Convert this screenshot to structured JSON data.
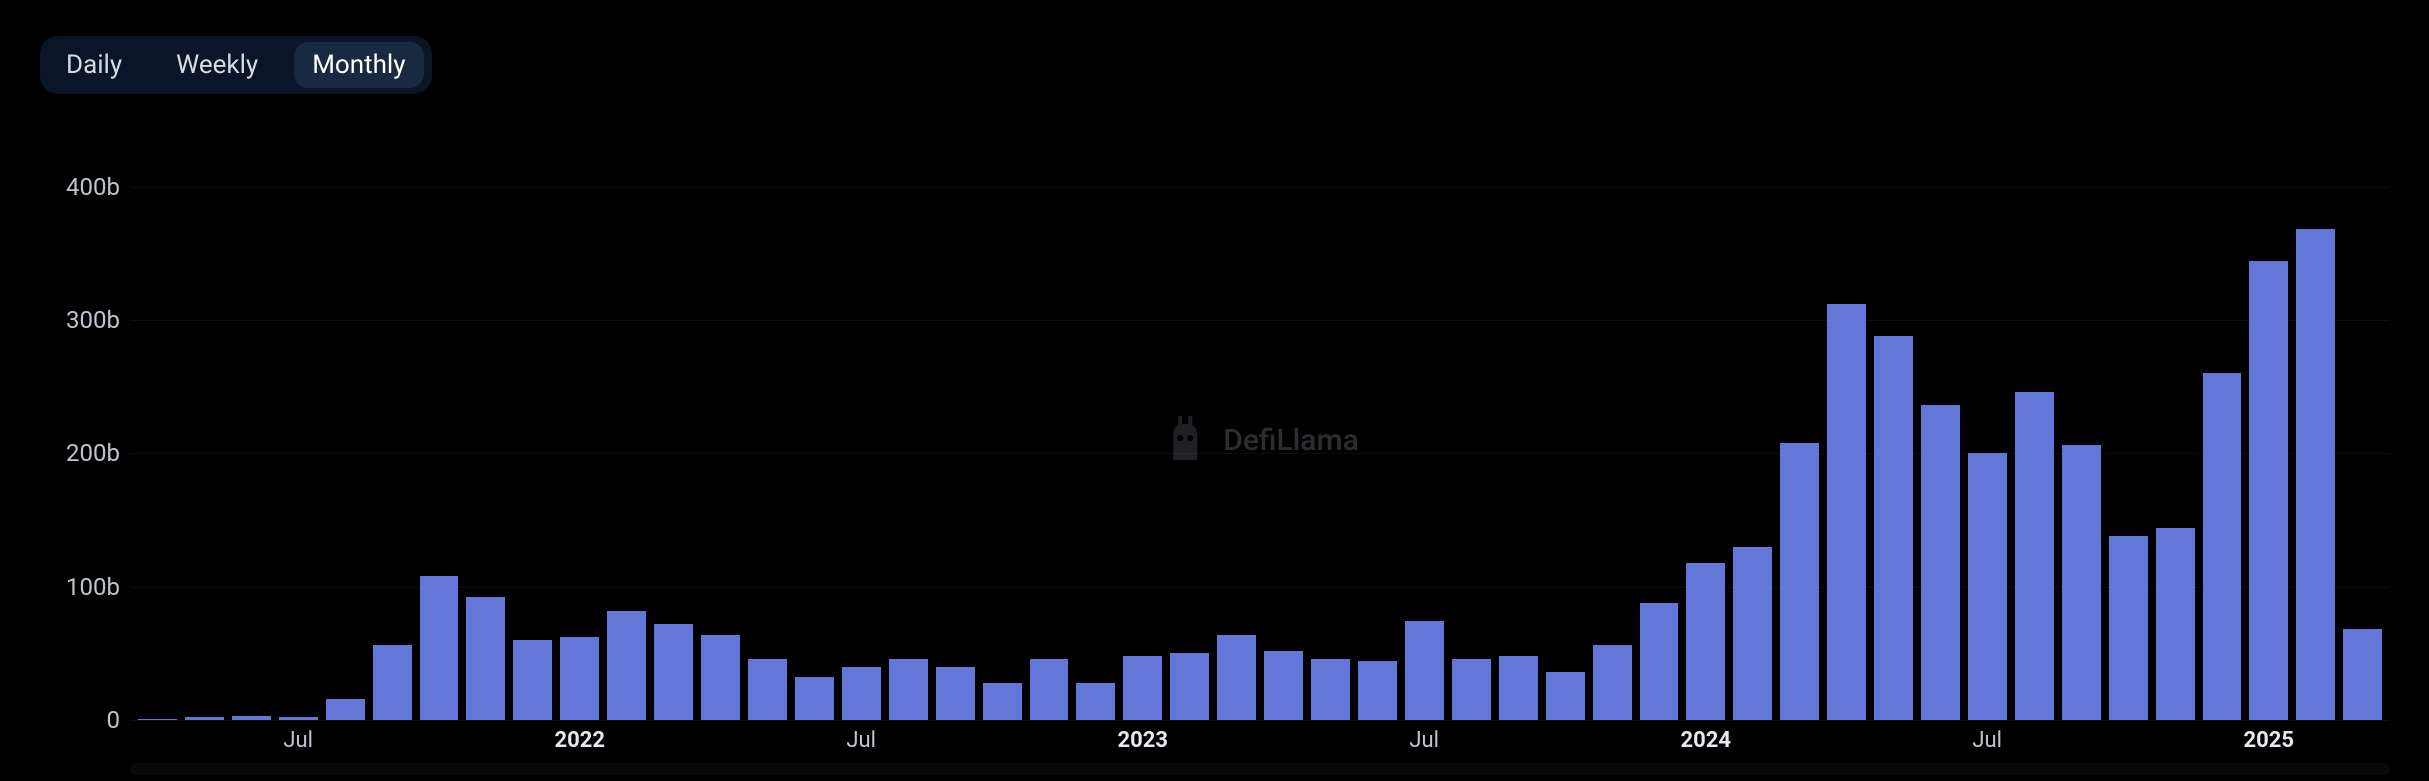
{
  "tabs": {
    "daily": "Daily",
    "weekly": "Weekly",
    "monthly": "Monthly",
    "active": "monthly"
  },
  "watermark": {
    "text": "DefiLlama"
  },
  "chart": {
    "type": "bar",
    "bar_color": "#6377d9",
    "background_color": "#000000",
    "axis_text_color": "#c0c4ce",
    "y": {
      "min": 0,
      "max": 420,
      "ticks": [
        {
          "value": 0,
          "label": "0"
        },
        {
          "value": 100,
          "label": "100b"
        },
        {
          "value": 200,
          "label": "200b"
        },
        {
          "value": 300,
          "label": "300b"
        },
        {
          "value": 400,
          "label": "400b"
        }
      ]
    },
    "bars": [
      {
        "month": "2021-04",
        "value": 0.5
      },
      {
        "month": "2021-05",
        "value": 2
      },
      {
        "month": "2021-06",
        "value": 3
      },
      {
        "month": "2021-07",
        "value": 2
      },
      {
        "month": "2021-08",
        "value": 16
      },
      {
        "month": "2021-09",
        "value": 56
      },
      {
        "month": "2021-10",
        "value": 108
      },
      {
        "month": "2021-11",
        "value": 92
      },
      {
        "month": "2021-12",
        "value": 60
      },
      {
        "month": "2022-01",
        "value": 62
      },
      {
        "month": "2022-02",
        "value": 82
      },
      {
        "month": "2022-03",
        "value": 72
      },
      {
        "month": "2022-04",
        "value": 64
      },
      {
        "month": "2022-05",
        "value": 46
      },
      {
        "month": "2022-06",
        "value": 32
      },
      {
        "month": "2022-07",
        "value": 40
      },
      {
        "month": "2022-08",
        "value": 46
      },
      {
        "month": "2022-09",
        "value": 40
      },
      {
        "month": "2022-10",
        "value": 28
      },
      {
        "month": "2022-11",
        "value": 46
      },
      {
        "month": "2022-12",
        "value": 28
      },
      {
        "month": "2023-01",
        "value": 48
      },
      {
        "month": "2023-02",
        "value": 50
      },
      {
        "month": "2023-03",
        "value": 64
      },
      {
        "month": "2023-04",
        "value": 52
      },
      {
        "month": "2023-05",
        "value": 46
      },
      {
        "month": "2023-06",
        "value": 44
      },
      {
        "month": "2023-07",
        "value": 74
      },
      {
        "month": "2023-08",
        "value": 46
      },
      {
        "month": "2023-09",
        "value": 48
      },
      {
        "month": "2023-10",
        "value": 36
      },
      {
        "month": "2023-11",
        "value": 56
      },
      {
        "month": "2023-12",
        "value": 88
      },
      {
        "month": "2024-01",
        "value": 118
      },
      {
        "month": "2024-02",
        "value": 130
      },
      {
        "month": "2024-03",
        "value": 208
      },
      {
        "month": "2024-04",
        "value": 312
      },
      {
        "month": "2024-05",
        "value": 288
      },
      {
        "month": "2024-06",
        "value": 236
      },
      {
        "month": "2024-07",
        "value": 200
      },
      {
        "month": "2024-08",
        "value": 246
      },
      {
        "month": "2024-09",
        "value": 206
      },
      {
        "month": "2024-10",
        "value": 138
      },
      {
        "month": "2024-11",
        "value": 144
      },
      {
        "month": "2024-12",
        "value": 260
      },
      {
        "month": "2025-01",
        "value": 344
      },
      {
        "month": "2025-02",
        "value": 368
      },
      {
        "month": "2025-03",
        "value": 68
      }
    ],
    "x_ticks": [
      {
        "index": 3,
        "label": "Jul",
        "bold": false
      },
      {
        "index": 9,
        "label": "2022",
        "bold": true
      },
      {
        "index": 15,
        "label": "Jul",
        "bold": false
      },
      {
        "index": 21,
        "label": "2023",
        "bold": true
      },
      {
        "index": 27,
        "label": "Jul",
        "bold": false
      },
      {
        "index": 33,
        "label": "2024",
        "bold": true
      },
      {
        "index": 39,
        "label": "Jul",
        "bold": false
      },
      {
        "index": 45,
        "label": "2025",
        "bold": true
      }
    ]
  }
}
